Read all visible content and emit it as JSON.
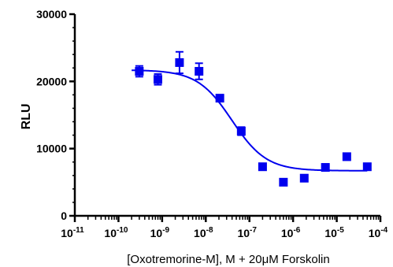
{
  "chart_data": {
    "type": "scatter",
    "title": "",
    "xlabel": "[Oxotremorine-M], M + 20μM Forskolin",
    "ylabel": "RLU",
    "xscale": "log",
    "xlim": [
      1e-11,
      0.0001
    ],
    "ylim": [
      0,
      30000
    ],
    "x_ticks": [
      {
        "base": "10",
        "exp": "-11"
      },
      {
        "base": "10",
        "exp": "-10"
      },
      {
        "base": "10",
        "exp": "-9"
      },
      {
        "base": "10",
        "exp": "-8"
      },
      {
        "base": "10",
        "exp": "-7"
      },
      {
        "base": "10",
        "exp": "-6"
      },
      {
        "base": "10",
        "exp": "-5"
      },
      {
        "base": "10",
        "exp": "-4"
      }
    ],
    "y_ticks": [
      "0",
      "10000",
      "20000",
      "30000"
    ],
    "grid": false,
    "legend": "none",
    "color": "#0000ee",
    "series": [
      {
        "marker": "square",
        "points": [
          {
            "x": 3e-10,
            "y": 21500,
            "err": 800
          },
          {
            "x": 8e-10,
            "y": 20300,
            "err": 800
          },
          {
            "x": 2.5e-09,
            "y": 22800,
            "err": 1600
          },
          {
            "x": 7e-09,
            "y": 21500,
            "err": 1200
          },
          {
            "x": 2.1e-08,
            "y": 17500,
            "err": 500
          },
          {
            "x": 6.5e-08,
            "y": 12600,
            "err": 600
          },
          {
            "x": 2e-07,
            "y": 7300,
            "err": 0
          },
          {
            "x": 6e-07,
            "y": 5000,
            "err": 0
          },
          {
            "x": 1.8e-06,
            "y": 5600,
            "err": 0
          },
          {
            "x": 5.5e-06,
            "y": 7200,
            "err": 500
          },
          {
            "x": 1.7e-05,
            "y": 8800,
            "err": 500
          },
          {
            "x": 5e-05,
            "y": 7300,
            "err": 0
          }
        ]
      }
    ],
    "fit_curve": {
      "model": "sigmoidal dose-response",
      "top": 21700,
      "bottom": 6700,
      "log_ec50": -7.4,
      "hill_slope": -1.1,
      "x_range": [
        2e-10,
        5e-05
      ]
    }
  }
}
